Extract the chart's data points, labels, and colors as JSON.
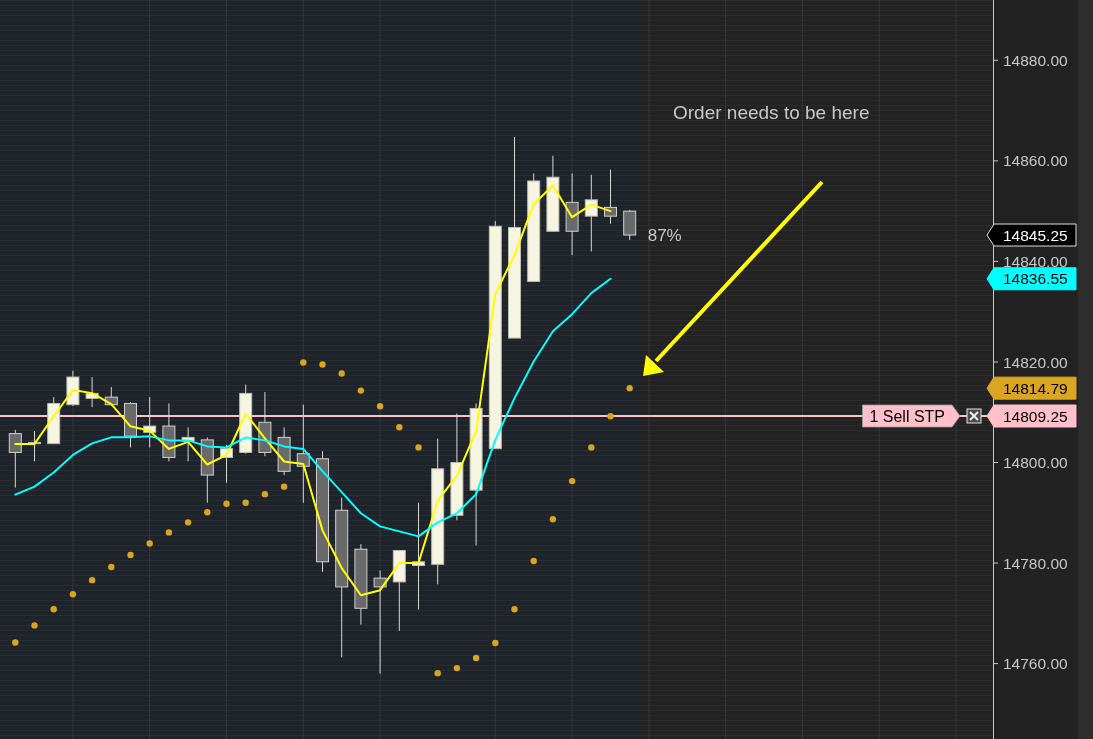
{
  "chart_data": {
    "type": "candlestick",
    "categories": [
      null,
      null,
      null,
      null,
      null,
      null,
      null,
      null,
      null,
      null,
      null,
      null,
      null,
      null,
      null,
      null,
      null,
      null,
      null,
      null,
      null,
      null,
      null,
      null,
      null,
      null,
      null,
      null,
      null,
      null,
      null,
      null,
      null
    ],
    "ohlc": [
      [
        14805.75,
        14806.5,
        14795.0,
        14802.0
      ],
      [
        14803.75,
        14806.25,
        14800.25,
        14804.0
      ],
      [
        14803.75,
        14813.0,
        14803.75,
        14811.75
      ],
      [
        14811.5,
        14818.25,
        14811.25,
        14817.0
      ],
      [
        14812.75,
        14817.0,
        14811.0,
        14813.75
      ],
      [
        14813.0,
        14815.0,
        14811.25,
        14811.5
      ],
      [
        14811.75,
        14812.0,
        14803.0,
        14805.25
      ],
      [
        14806.0,
        14813.0,
        14803.0,
        14807.25
      ],
      [
        14807.25,
        14811.75,
        14800.25,
        14801.0
      ],
      [
        14804.25,
        14807.0,
        14800.25,
        14805.0
      ],
      [
        14804.5,
        14805.0,
        14792.0,
        14797.5
      ],
      [
        14801.0,
        14803.5,
        14796.0,
        14802.75
      ],
      [
        14802.0,
        14815.5,
        14801.75,
        14813.75
      ],
      [
        14808.0,
        14814.0,
        14801.25,
        14802.0
      ],
      [
        14805.0,
        14807.0,
        14797.5,
        14798.25
      ],
      [
        14801.75,
        14811.5,
        14792.0,
        14799.25
      ],
      [
        14800.75,
        14802.25,
        14778.25,
        14780.25
      ],
      [
        14790.5,
        14793.0,
        14761.25,
        14775.25
      ],
      [
        14782.75,
        14783.75,
        14767.75,
        14771.0
      ],
      [
        14777.0,
        14778.5,
        14758.0,
        14775.25
      ],
      [
        14776.25,
        14782.5,
        14766.5,
        14782.5
      ],
      [
        14779.5,
        14792.0,
        14770.75,
        14780.25
      ],
      [
        14779.75,
        14804.75,
        14775.75,
        14798.75
      ],
      [
        14789.5,
        14809.75,
        14788.5,
        14800.0
      ],
      [
        14794.5,
        14811.75,
        14783.5,
        14810.75
      ],
      [
        14802.75,
        14848.0,
        14802.75,
        14847.0
      ],
      [
        14824.75,
        14864.75,
        14824.75,
        14846.75
      ],
      [
        14836.0,
        14857.5,
        14836.0,
        14856.0
      ],
      [
        14846.0,
        14861.0,
        14846.0,
        14856.75
      ],
      [
        14851.75,
        14857.5,
        14841.25,
        14846.0
      ],
      [
        14849.0,
        14857.25,
        14842.0,
        14852.25
      ],
      [
        14850.75,
        14858.25,
        14847.5,
        14849.0
      ],
      [
        14850.0,
        14850.25,
        14844.25,
        14845.25
      ]
    ],
    "series": [
      {
        "type": "line",
        "color": "#ffff00",
        "values": [
          14803.7,
          14803.7,
          14809.2,
          14814.4,
          14813.8,
          14811.6,
          14807.2,
          14806.3,
          14802.7,
          14804.1,
          14799.6,
          14801.5,
          14809.7,
          14804.8,
          14800.2,
          14799.7,
          14786.5,
          14779.0,
          14773.6,
          14774.6,
          14780.0,
          14780.0,
          14792.4,
          14797.4,
          14806.2,
          14833.5,
          14841.3,
          14851.4,
          14855.1,
          14848.8,
          14851.3,
          14850.0,
          null
        ]
      },
      {
        "type": "line",
        "color": "#00ffff",
        "values": [
          14793.6,
          14795.2,
          14798.0,
          14801.5,
          14803.8,
          14805.0,
          14805.0,
          14805.2,
          14804.4,
          14804.4,
          14803.2,
          14803.0,
          14805.0,
          14804.4,
          14803.2,
          14802.7,
          14798.3,
          14794.1,
          14789.9,
          14787.3,
          14786.3,
          14785.3,
          14788.1,
          14789.9,
          14793.7,
          14804.5,
          14812.8,
          14820.1,
          14826.1,
          14829.5,
          14833.7,
          14836.55,
          null
        ]
      },
      {
        "type": "scatter",
        "color": "#daa520",
        "marker": "circle",
        "values": [
          14764.2,
          14767.6,
          14770.8,
          14773.8,
          14776.6,
          14779.2,
          14781.6,
          14783.9,
          14786.1,
          14788.1,
          14790.1,
          14791.8,
          14792.0,
          14793.7,
          14795.2,
          14819.9,
          14819.5,
          14817.7,
          14814.3,
          14811.2,
          14807.0,
          14803.0,
          14758.1,
          14759.1,
          14761.1,
          14764.1,
          14770.8,
          14780.4,
          14788.7,
          14796.3,
          14803.0,
          14809.2,
          14814.79
        ]
      }
    ],
    "ylim": [
      14745,
      14892
    ],
    "yticks": [
      {
        "value": 14760,
        "label": "14760.00"
      },
      {
        "value": 14780,
        "label": "14780.00"
      },
      {
        "value": 14800,
        "label": "14800.00"
      },
      {
        "value": 14820,
        "label": "14820.00"
      },
      {
        "value": 14840,
        "label": "14840.00"
      },
      {
        "value": 14860,
        "label": "14860.00"
      },
      {
        "value": 14880,
        "label": "14880.00"
      }
    ],
    "tick_labels": "y",
    "grid": "x",
    "ref_lines": [
      {
        "axis": "y",
        "value": 14809.25,
        "label": "1 Sell STP",
        "color": "#ffc0cb"
      }
    ],
    "annotations": [
      "Order needs to be here",
      "87%",
      "14845.25",
      "14836.55",
      "14814.79",
      "14809.25"
    ]
  }
}
